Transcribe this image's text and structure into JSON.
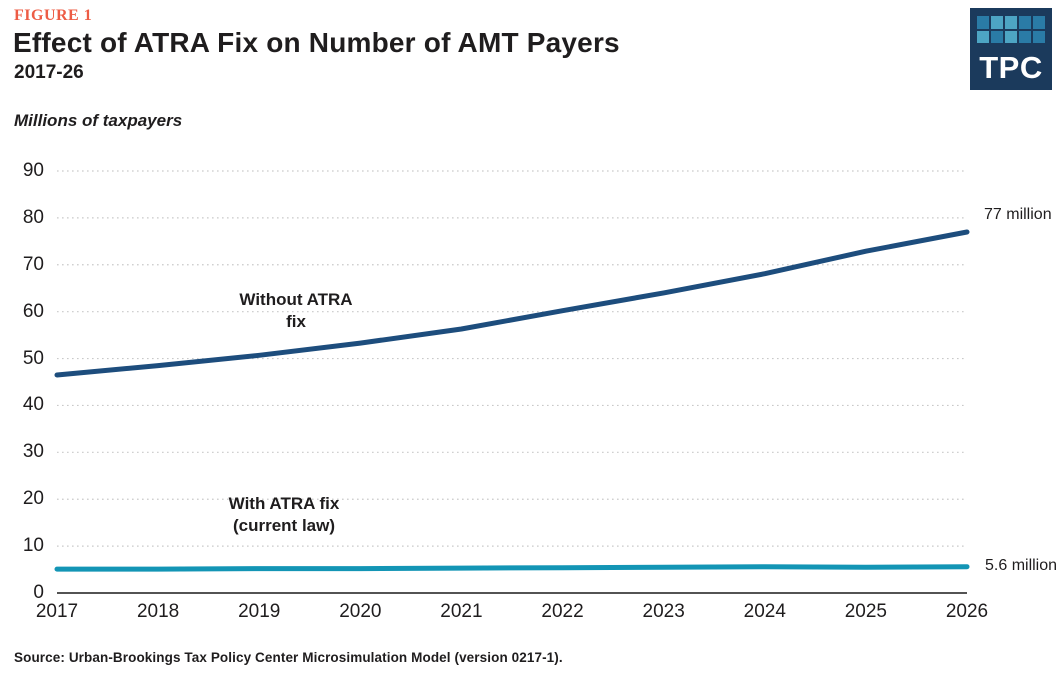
{
  "figure_label": "FIGURE 1",
  "title": "Effect of ATRA Fix on Number of AMT Payers",
  "subtitle": "2017-26",
  "units_label": "Millions of taxpayers",
  "source_note": "Source: Urban-Brookings Tax Policy Center Microsimulation Model (version 0217-1).",
  "logo": {
    "text": "TPC",
    "bg_color": "#1b3a5c",
    "tile_light_color": "#4da5c4",
    "tile_mid_color": "#2a7ba6",
    "tile_pattern": [
      "m",
      "l",
      "l",
      "m",
      "m",
      "l",
      "m",
      "l",
      "m",
      "m"
    ]
  },
  "colors": {
    "figure_label": "#ed5c45",
    "without_line": "#1d4d7d",
    "with_line": "#1395b5",
    "grid": "#c9c9c9",
    "axis": "#1a1a1a",
    "text": "#1f1d1e"
  },
  "annotations": {
    "without_label_line1": "Without ATRA",
    "without_label_line2": "fix",
    "with_label_line1": "With ATRA fix",
    "with_label_line2": "(current law)",
    "without_end_label": "77 million",
    "with_end_label": "5.6 million"
  },
  "chart_data": {
    "type": "line",
    "title": "Effect of ATRA Fix on Number of AMT Payers",
    "subtitle": "2017-26",
    "ylabel": "Millions of taxpayers",
    "x": [
      2017,
      2018,
      2019,
      2020,
      2021,
      2022,
      2023,
      2024,
      2025,
      2026
    ],
    "series": [
      {
        "name": "Without ATRA fix",
        "color_key": "without_line",
        "values": [
          46.5,
          48.5,
          50.7,
          53.3,
          56.3,
          60.2,
          64.0,
          68.1,
          72.9,
          77.0
        ],
        "end_label": "77 million"
      },
      {
        "name": "With ATRA fix (current law)",
        "color_key": "with_line",
        "values": [
          5.1,
          5.1,
          5.2,
          5.2,
          5.3,
          5.4,
          5.5,
          5.6,
          5.5,
          5.6
        ],
        "end_label": "5.6 million"
      }
    ],
    "ylim": [
      0,
      90
    ],
    "yticks": [
      0,
      10,
      20,
      30,
      40,
      50,
      60,
      70,
      80,
      90
    ],
    "grid": "horizontal-dotted",
    "legend_position": "inline-labels"
  }
}
